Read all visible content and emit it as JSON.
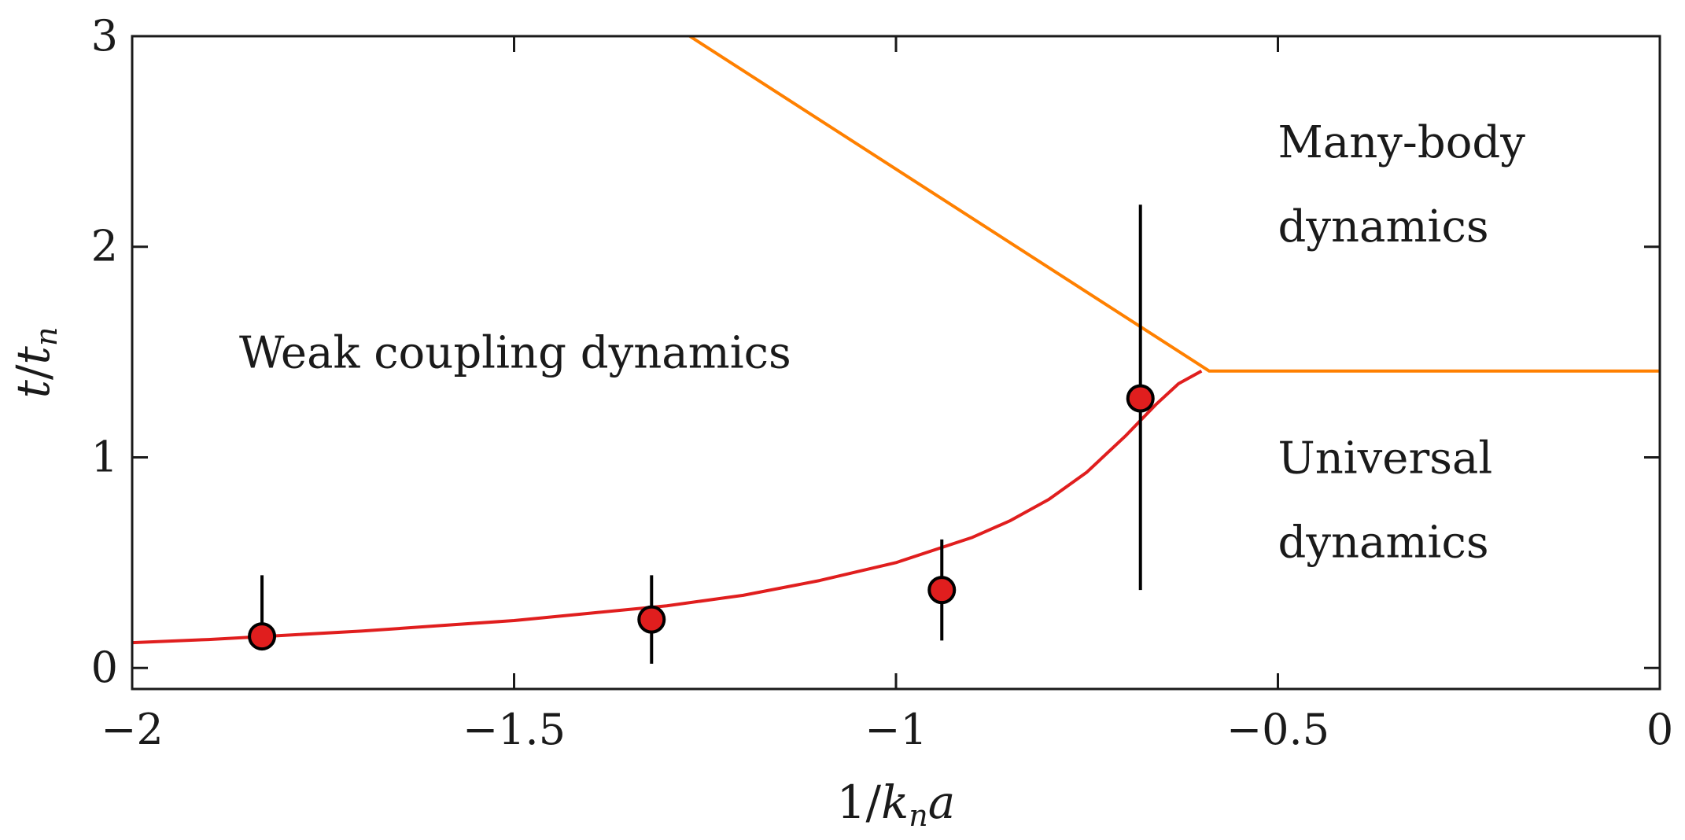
{
  "chart_data": {
    "type": "scatter",
    "xlabel": "1/k_n a",
    "ylabel": "t/t_n",
    "xlim": [
      -2,
      0
    ],
    "ylim": [
      -0.1,
      3
    ],
    "xticks": [
      -2,
      -1.5,
      -1,
      -0.5,
      0
    ],
    "yticks": [
      0,
      1,
      2,
      3
    ],
    "x_tick_labels": [
      "−2",
      "−1.5",
      "−1",
      "−0.5",
      "0"
    ],
    "y_tick_labels": [
      "0",
      "1",
      "2",
      "3"
    ],
    "grid": false,
    "colors": {
      "points": "#e01e1e",
      "point_edge": "#000000",
      "error_bars": "#000000",
      "model_curve": "#e01e1e",
      "boundary": "#ff8000",
      "axes": "#1a1a1a"
    },
    "series": [
      {
        "kind": "points_with_error_bars",
        "x": [
          -1.83,
          -1.32,
          -0.94,
          -0.68
        ],
        "y": [
          0.15,
          0.23,
          0.37,
          1.28
        ],
        "y_err_low": [
          0.15,
          0.02,
          0.13,
          0.37
        ],
        "y_err_high": [
          0.44,
          0.44,
          0.61,
          2.2
        ]
      },
      {
        "kind": "curve",
        "x": [
          -2.0,
          -1.9,
          -1.8,
          -1.7,
          -1.6,
          -1.5,
          -1.4,
          -1.3,
          -1.2,
          -1.1,
          -1.0,
          -0.9,
          -0.85,
          -0.8,
          -0.75,
          -0.7,
          -0.66,
          -0.63,
          -0.6
        ],
        "y": [
          0.12,
          0.135,
          0.155,
          0.175,
          0.2,
          0.225,
          0.26,
          0.295,
          0.345,
          0.415,
          0.5,
          0.62,
          0.7,
          0.8,
          0.93,
          1.1,
          1.25,
          1.35,
          1.41
        ]
      },
      {
        "kind": "boundary",
        "x": [
          -1.27,
          -0.59,
          0.0
        ],
        "y": [
          3.0,
          1.41,
          1.41
        ]
      }
    ],
    "annotations": [
      {
        "text": "Weak coupling dynamics",
        "x": -1.86,
        "y": 1.5
      },
      {
        "text": "Many-body",
        "x": -0.5,
        "y": 2.5
      },
      {
        "text": "dynamics",
        "x": -0.5,
        "y": 2.1
      },
      {
        "text": "Universal",
        "x": -0.5,
        "y": 1.0
      },
      {
        "text": "dynamics",
        "x": -0.5,
        "y": 0.6
      }
    ]
  }
}
